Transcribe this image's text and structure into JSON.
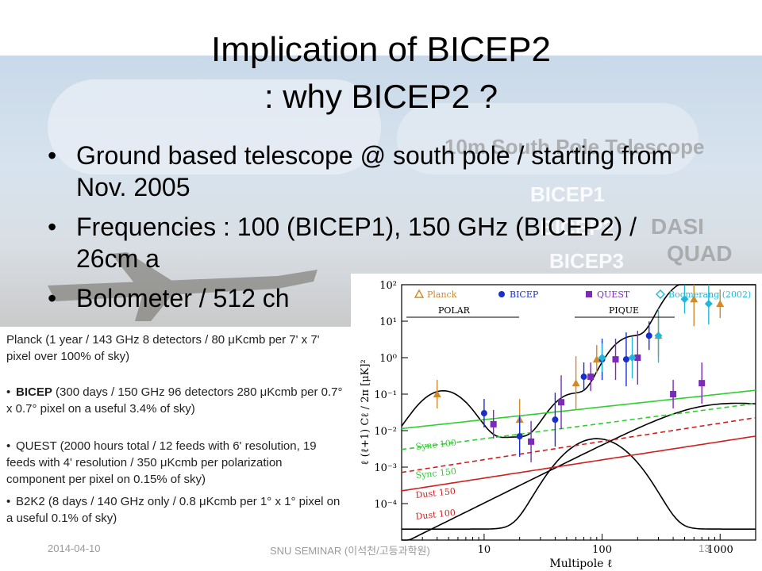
{
  "slide": {
    "title_line1": "Implication of BICEP2",
    "title_line2": ": why BICEP2 ?",
    "bullets": [
      "Ground based telescope @ south pole / starting from Nov. 2005",
      "Frequencies : 100 (BICEP1), 150 GHz (BICEP2) / 26cm a",
      "Bolometer / 512 ch"
    ],
    "background_labels": [
      "10m South Pole Telescope",
      "BICEP1",
      "BICEP2",
      "BICEP3",
      "DASI",
      "QUAD"
    ]
  },
  "experiments_panel": {
    "planck": "Planck (1 year / 143 GHz 8 detectors / 80 μKcmb per 7' x 7' pixel over 100% of sky)",
    "bicep_name": "BICEP",
    "bicep": " (300 days / 150 GHz 96 detectors 280 μKcmb per 0.7° x 0.7° pixel on a useful 3.4% of sky)",
    "quest": "QUEST (2000 hours total / 12 feeds with 6' resolution, 19 feeds with 4' resolution / 350 μKcmb per polarization component per pixel on 0.15% of sky)",
    "b2k2": "B2K2 (8 days / 140 GHz only / 0.8 μKcmb per 1° x 1° pixel on a useful 0.1% of sky)"
  },
  "chart_data": {
    "type": "scatter",
    "xlabel": "Multipole ℓ",
    "ylabel": "ℓ (ℓ+1) Cℓ / 2π [μK]²",
    "xscale": "log",
    "yscale": "log",
    "xlim": [
      2,
      2000
    ],
    "ylim": [
      1e-05,
      100
    ],
    "x_ticks": [
      "10",
      "100",
      "1000"
    ],
    "y_ticks": [
      "10²",
      "10¹",
      "10⁰",
      "10⁻¹",
      "10⁻²",
      "10⁻³",
      "10⁻⁴"
    ],
    "legend": [
      "Planck",
      "BICEP",
      "QUEST",
      "Boomerang (2002)"
    ],
    "range_labels": [
      "POLAR",
      "PIQUE"
    ],
    "curve_labels": [
      "Sync 100",
      "Sync 150",
      "Dust 150",
      "Dust 100"
    ],
    "series": [
      {
        "name": "Planck",
        "color": "#d08a2a",
        "x": [
          4,
          20,
          60,
          90,
          300,
          600,
          1000
        ],
        "y": [
          0.1,
          0.02,
          0.2,
          0.9,
          4,
          40,
          30
        ]
      },
      {
        "name": "BICEP",
        "color": "#1a2fc8",
        "x": [
          10,
          20,
          40,
          70,
          100,
          160,
          250
        ],
        "y": [
          0.03,
          0.007,
          0.02,
          0.3,
          0.9,
          0.9,
          4
        ]
      },
      {
        "name": "QUEST",
        "color": "#7a2bb8",
        "x": [
          12,
          25,
          45,
          80,
          130,
          200,
          400,
          700
        ],
        "y": [
          0.015,
          0.005,
          0.06,
          0.3,
          0.9,
          1,
          0.1,
          0.2
        ]
      },
      {
        "name": "Boomerang (2002)",
        "color": "#20b8d8",
        "x": [
          100,
          180,
          300,
          500,
          800
        ],
        "y": [
          1,
          1,
          4,
          40,
          30
        ]
      }
    ]
  },
  "footer": {
    "date": "2014-04-10",
    "center": "SNU SEMINAR (이석천/고등과학원)",
    "page": "13"
  }
}
